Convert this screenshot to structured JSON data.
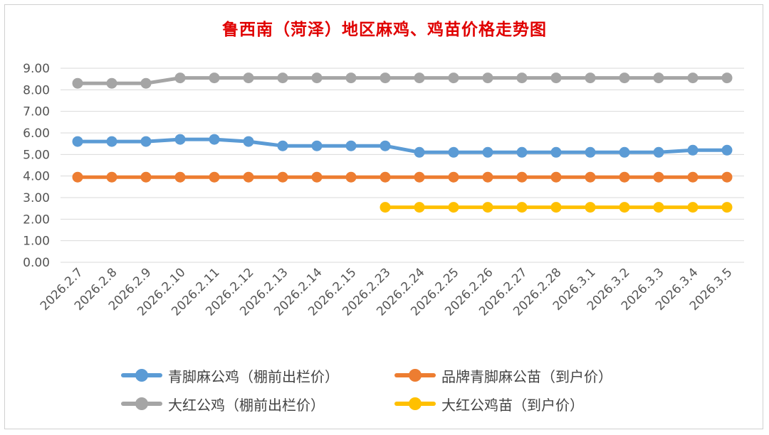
{
  "chart_data": {
    "type": "line",
    "title": "鲁西南（菏泽）地区麻鸡、鸡苗价格走势图",
    "categories": [
      "2026.2.7",
      "2026.2.8",
      "2026.2.9",
      "2026.2.10",
      "2026.2.11",
      "2026.2.12",
      "2026.2.13",
      "2026.2.14",
      "2026.2.15",
      "2026.2.23",
      "2026.2.24",
      "2026.2.25",
      "2026.2.26",
      "2026.2.27",
      "2026.2.28",
      "2026.3.1",
      "2026.3.2",
      "2026.3.3",
      "2026.3.4",
      "2026.3.5"
    ],
    "y_ticks": [
      "0.00",
      "1.00",
      "2.00",
      "3.00",
      "4.00",
      "5.00",
      "6.00",
      "7.00",
      "8.00",
      "9.00"
    ],
    "ylim": [
      0,
      9
    ],
    "grid": true,
    "legend_position": "bottom",
    "series": [
      {
        "name": "青脚麻公鸡（棚前出栏价）",
        "color": "#5b9bd5",
        "values": [
          5.6,
          5.6,
          5.6,
          5.7,
          5.7,
          5.6,
          5.4,
          5.4,
          5.4,
          5.4,
          5.1,
          5.1,
          5.1,
          5.1,
          5.1,
          5.1,
          5.1,
          5.1,
          5.2,
          5.2
        ]
      },
      {
        "name": "品牌青脚麻公苗（到户价）",
        "color": "#ed7d31",
        "values": [
          3.95,
          3.95,
          3.95,
          3.95,
          3.95,
          3.95,
          3.95,
          3.95,
          3.95,
          3.95,
          3.95,
          3.95,
          3.95,
          3.95,
          3.95,
          3.95,
          3.95,
          3.95,
          3.95,
          3.95
        ]
      },
      {
        "name": "大红公鸡（棚前出栏价）",
        "color": "#a5a5a5",
        "values": [
          8.3,
          8.3,
          8.3,
          8.55,
          8.55,
          8.55,
          8.55,
          8.55,
          8.55,
          8.55,
          8.55,
          8.55,
          8.55,
          8.55,
          8.55,
          8.55,
          8.55,
          8.55,
          8.55,
          8.55
        ]
      },
      {
        "name": "大红公鸡苗（到户价）",
        "color": "#ffc000",
        "values": [
          null,
          null,
          null,
          null,
          null,
          null,
          null,
          null,
          null,
          2.55,
          2.55,
          2.55,
          2.55,
          2.55,
          2.55,
          2.55,
          2.55,
          2.55,
          2.55,
          2.55
        ]
      }
    ]
  }
}
